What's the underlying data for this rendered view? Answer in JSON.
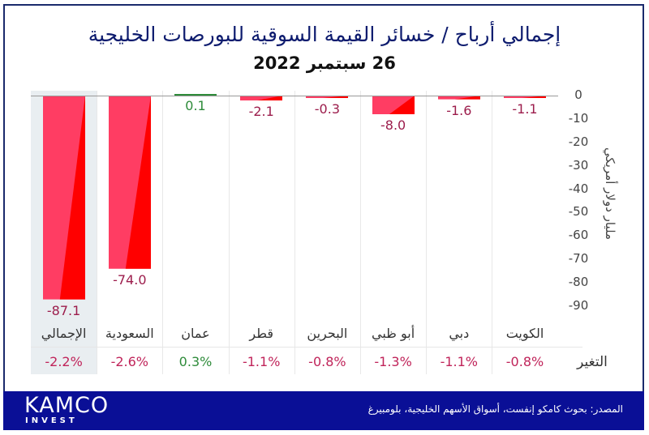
{
  "chart_data": {
    "type": "bar",
    "title": "إجمالي أرباح / خسائر القيمة السوقية للبورصات الخليجية",
    "subtitle": "26 سبتمبر 2022",
    "xlabel": "",
    "ylabel": "مليار دولار أمريكي",
    "ylim": [
      -90,
      0
    ],
    "yticks": [
      "0",
      "-10",
      "-20",
      "-30",
      "-40",
      "-50",
      "-60",
      "-70",
      "-80",
      "-90"
    ],
    "ytick_values": [
      0,
      -10,
      -20,
      -30,
      -40,
      -50,
      -60,
      -70,
      -80,
      -90
    ],
    "grid": false,
    "legend": "none",
    "categories": [
      "الإجمالي",
      "السعودية",
      "عمان",
      "قطر",
      "البحرين",
      "أبو ظبي",
      "دبي",
      "الكويت"
    ],
    "values": [
      -87.1,
      -74.0,
      0.1,
      -2.1,
      -0.3,
      -8.0,
      -1.6,
      -1.1
    ],
    "value_labels": [
      "-87.1",
      "-74.0",
      "0.1",
      "-2.1",
      "-0.3",
      "-8.0",
      "-1.6",
      "-1.1"
    ],
    "change_row_label": "التغير",
    "change_pct": [
      "-2.2%",
      "-2.6%",
      "0.3%",
      "-1.1%",
      "-0.8%",
      "-1.3%",
      "-1.1%",
      "-0.8%"
    ],
    "highlighted_category": "الإجمالي"
  },
  "colors": {
    "negative_bar_light": "#ff3d63",
    "negative_bar_dark": "#ff0000",
    "positive_bar": "#2e8b3a",
    "negative_text": "#9c1d4c",
    "positive_text": "#2e8b3a",
    "title": "#0d1b6e",
    "footer_bg": "#0a0f96"
  },
  "footer": {
    "logo_main": "KAMCO",
    "logo_sub": "INVEST",
    "source": "المصدر: بحوث كامكو إنفست، أسواق الأسهم الخليجية، بلومبيرغ"
  }
}
